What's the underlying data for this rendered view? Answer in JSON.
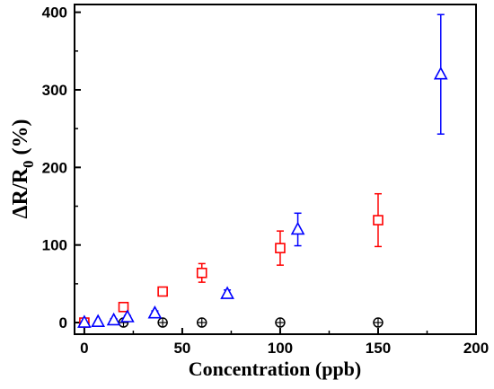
{
  "chart_data": {
    "type": "scatter",
    "title": "",
    "xlabel": "Concentration (ppb)",
    "ylabel": {
      "main": "ΔR/R",
      "subscript": "0",
      "suffix": " (%)"
    },
    "xlim": [
      -5,
      200
    ],
    "ylim": [
      -15,
      410
    ],
    "x_ticks": [
      0,
      50,
      100,
      150,
      200
    ],
    "y_ticks": [
      0,
      100,
      200,
      300,
      400
    ],
    "grid": false,
    "legend": "none",
    "series": [
      {
        "marker": "circle-cross",
        "color": "#000000",
        "points": [
          {
            "x": 0,
            "y": 0,
            "err": 0
          },
          {
            "x": 20,
            "y": 0,
            "err": 0
          },
          {
            "x": 40,
            "y": 0,
            "err": 0
          },
          {
            "x": 60,
            "y": 0,
            "err": 0
          },
          {
            "x": 100,
            "y": 0,
            "err": 0
          },
          {
            "x": 150,
            "y": 0,
            "err": 0
          }
        ]
      },
      {
        "marker": "square",
        "color": "#ff0000",
        "points": [
          {
            "x": 0,
            "y": 0,
            "err": 0
          },
          {
            "x": 20,
            "y": 20,
            "err": 4
          },
          {
            "x": 40,
            "y": 40,
            "err": 5
          },
          {
            "x": 60,
            "y": 64,
            "err": 12
          },
          {
            "x": 100,
            "y": 96,
            "err": 22
          },
          {
            "x": 150,
            "y": 132,
            "err": 34
          }
        ]
      },
      {
        "marker": "triangle",
        "color": "#0000ff",
        "points": [
          {
            "x": 0,
            "y": 0,
            "err": 0
          },
          {
            "x": 7,
            "y": 1,
            "err": 1
          },
          {
            "x": 15,
            "y": 3,
            "err": 2
          },
          {
            "x": 22,
            "y": 7,
            "err": 2
          },
          {
            "x": 36,
            "y": 12,
            "err": 3
          },
          {
            "x": 73,
            "y": 37,
            "err": 5
          },
          {
            "x": 109,
            "y": 120,
            "err": 21
          },
          {
            "x": 182,
            "y": 320,
            "err": 77
          }
        ]
      }
    ]
  }
}
